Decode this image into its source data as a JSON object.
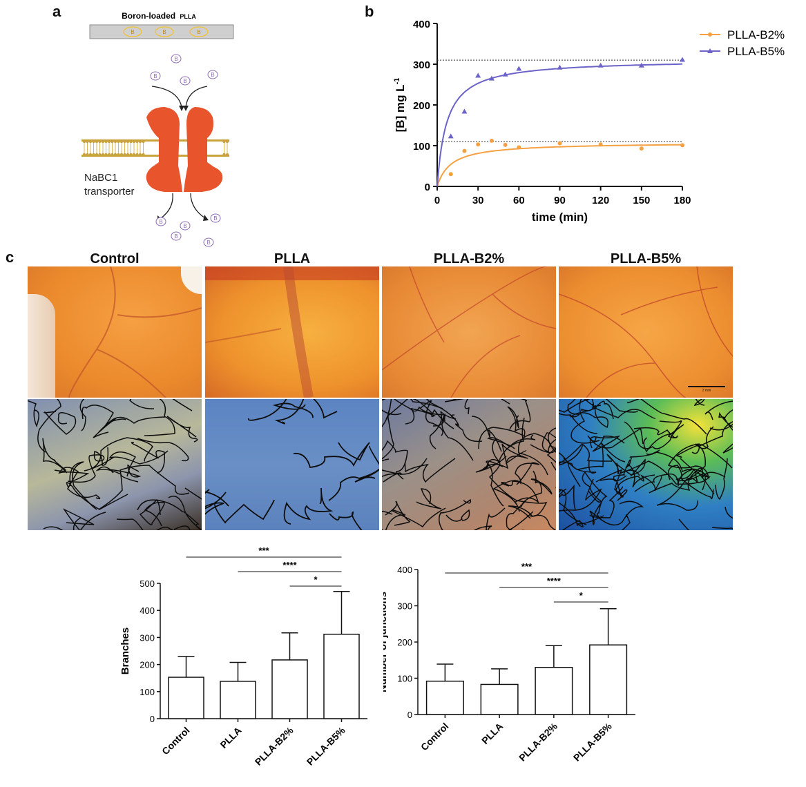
{
  "figure": {
    "panel_a": {
      "letter": "a",
      "film_label_main": "Boron-loaded",
      "film_label_small": "PLLA",
      "boron_symbol": "B",
      "transporter_line1": "NaBC1",
      "transporter_line2": "transporter",
      "colors": {
        "transporter": "#e8542c",
        "membrane": "#c9a23c",
        "boron": "#8e6bb5",
        "film": "#cfcfcf",
        "film_boron": "#f2c230"
      }
    },
    "panel_b": {
      "letter": "b"
    },
    "panel_c": {
      "letter": "c",
      "titles": [
        "Control",
        "PLLA",
        "PLLA-B2%",
        "PLLA-B5%"
      ],
      "scale_bar_label": "2 mm"
    }
  },
  "chart_data": [
    {
      "type": "scatter",
      "xlabel": "time (min)",
      "ylabel": "[B] mg L-1",
      "ylabel_parts": {
        "main": "[B] mg L",
        "sup": "-1"
      },
      "xlim": [
        0,
        180
      ],
      "ylim": [
        0,
        400
      ],
      "xticks": [
        0,
        30,
        60,
        90,
        120,
        150,
        180
      ],
      "yticks": [
        0,
        100,
        200,
        300,
        400
      ],
      "reference_lines": [
        110,
        310
      ],
      "legend_position": "top-right",
      "series": [
        {
          "name": "PLLA-B2%",
          "color": "#f5a142",
          "marker": "circle",
          "x": [
            10,
            20,
            30,
            40,
            50,
            60,
            90,
            120,
            150,
            180
          ],
          "y": [
            30,
            87,
            103,
            112,
            102,
            96,
            106,
            103,
            93,
            101
          ],
          "fit_plateau": 108,
          "fit_half_time": 10
        },
        {
          "name": "PLLA-B5%",
          "color": "#6b63c8",
          "marker": "triangle",
          "x": [
            10,
            20,
            30,
            40,
            50,
            60,
            90,
            120,
            150,
            180
          ],
          "y": [
            123,
            184,
            272,
            265,
            275,
            289,
            292,
            297,
            297,
            311
          ],
          "fit_plateau": 312,
          "fit_half_time": 7
        }
      ]
    },
    {
      "type": "bar",
      "ylabel": "Branches",
      "categories": [
        "Control",
        "PLLA",
        "PLLA-B2%",
        "PLLA-B5%"
      ],
      "values": [
        153,
        138,
        217,
        312
      ],
      "errors": [
        77,
        70,
        100,
        158
      ],
      "ylim": [
        0,
        500
      ],
      "yticks": [
        0,
        100,
        200,
        300,
        400,
        500
      ],
      "significance": [
        {
          "from": 0,
          "to": 3,
          "label": "***"
        },
        {
          "from": 1,
          "to": 3,
          "label": "****"
        },
        {
          "from": 2,
          "to": 3,
          "label": "*"
        }
      ]
    },
    {
      "type": "bar",
      "ylabel": "Number of junctions",
      "categories": [
        "Control",
        "PLLA",
        "PLLA-B2%",
        "PLLA-B5%"
      ],
      "values": [
        92,
        83,
        130,
        192
      ],
      "errors": [
        47,
        43,
        60,
        100
      ],
      "ylim": [
        0,
        400
      ],
      "yticks": [
        0,
        100,
        200,
        300,
        400
      ],
      "significance": [
        {
          "from": 0,
          "to": 3,
          "label": "***"
        },
        {
          "from": 1,
          "to": 3,
          "label": "****"
        },
        {
          "from": 2,
          "to": 3,
          "label": "*"
        }
      ]
    }
  ]
}
